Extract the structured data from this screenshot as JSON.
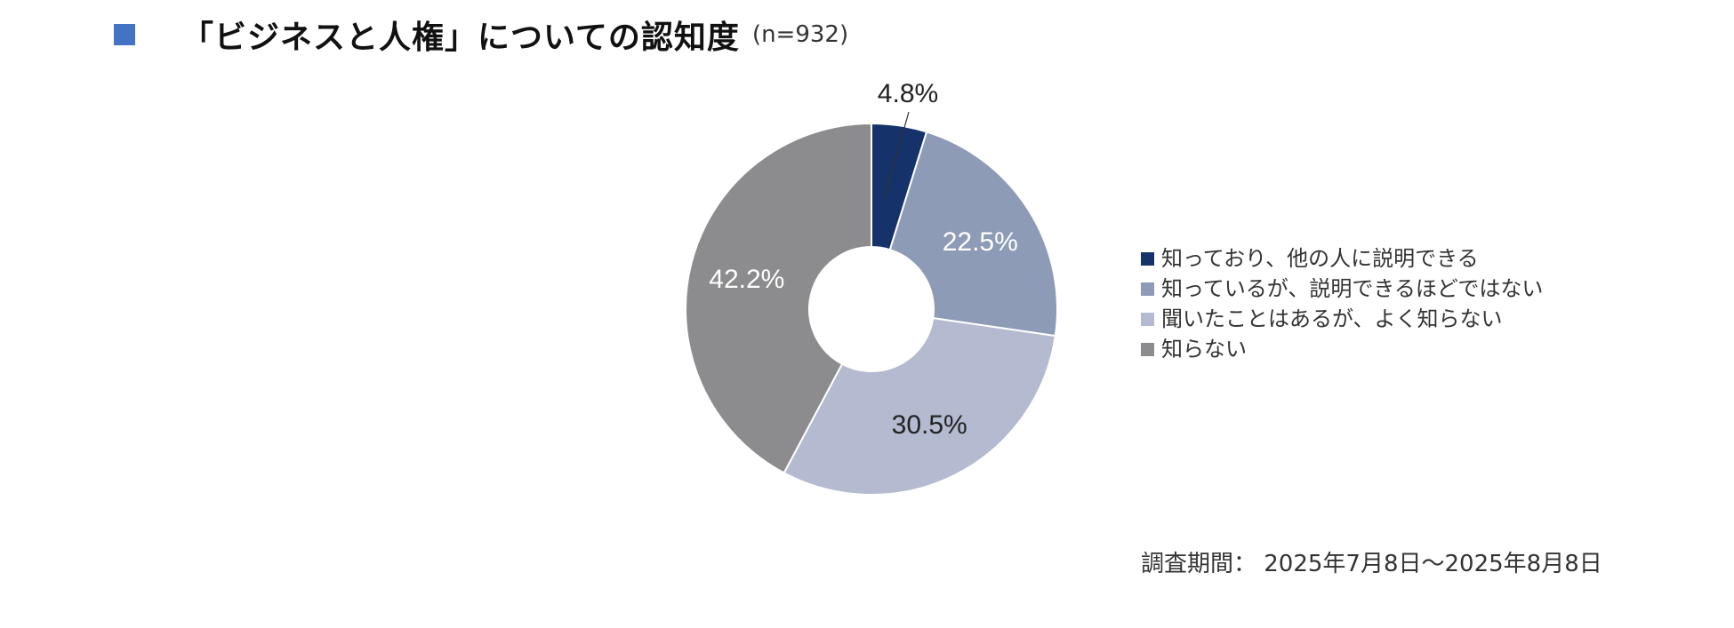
{
  "title": {
    "main": "「ビジネスと人権」についての認知度",
    "sample": "(n=932)",
    "marker_color": "#4472C4"
  },
  "chart_data": {
    "type": "pie",
    "donut": true,
    "categories": [
      "知っており、他の人に説明できる",
      "知っているが、説明できるほどではない",
      "聞いたことはあるが、よく知らない",
      "知らない"
    ],
    "values": [
      4.8,
      22.5,
      30.5,
      42.2
    ],
    "labels": [
      "4.8%",
      "22.5%",
      "30.5%",
      "42.2%"
    ],
    "colors": [
      "#16326B",
      "#8E9BB7",
      "#B4BACF",
      "#8C8B8D"
    ],
    "label_colors": [
      "#222222",
      "#FFFFFF",
      "#222222",
      "#FFFFFF"
    ],
    "legend_position": "right"
  },
  "footer": {
    "survey_period": "調査期間： 2025年7月8日～2025年8月8日"
  }
}
